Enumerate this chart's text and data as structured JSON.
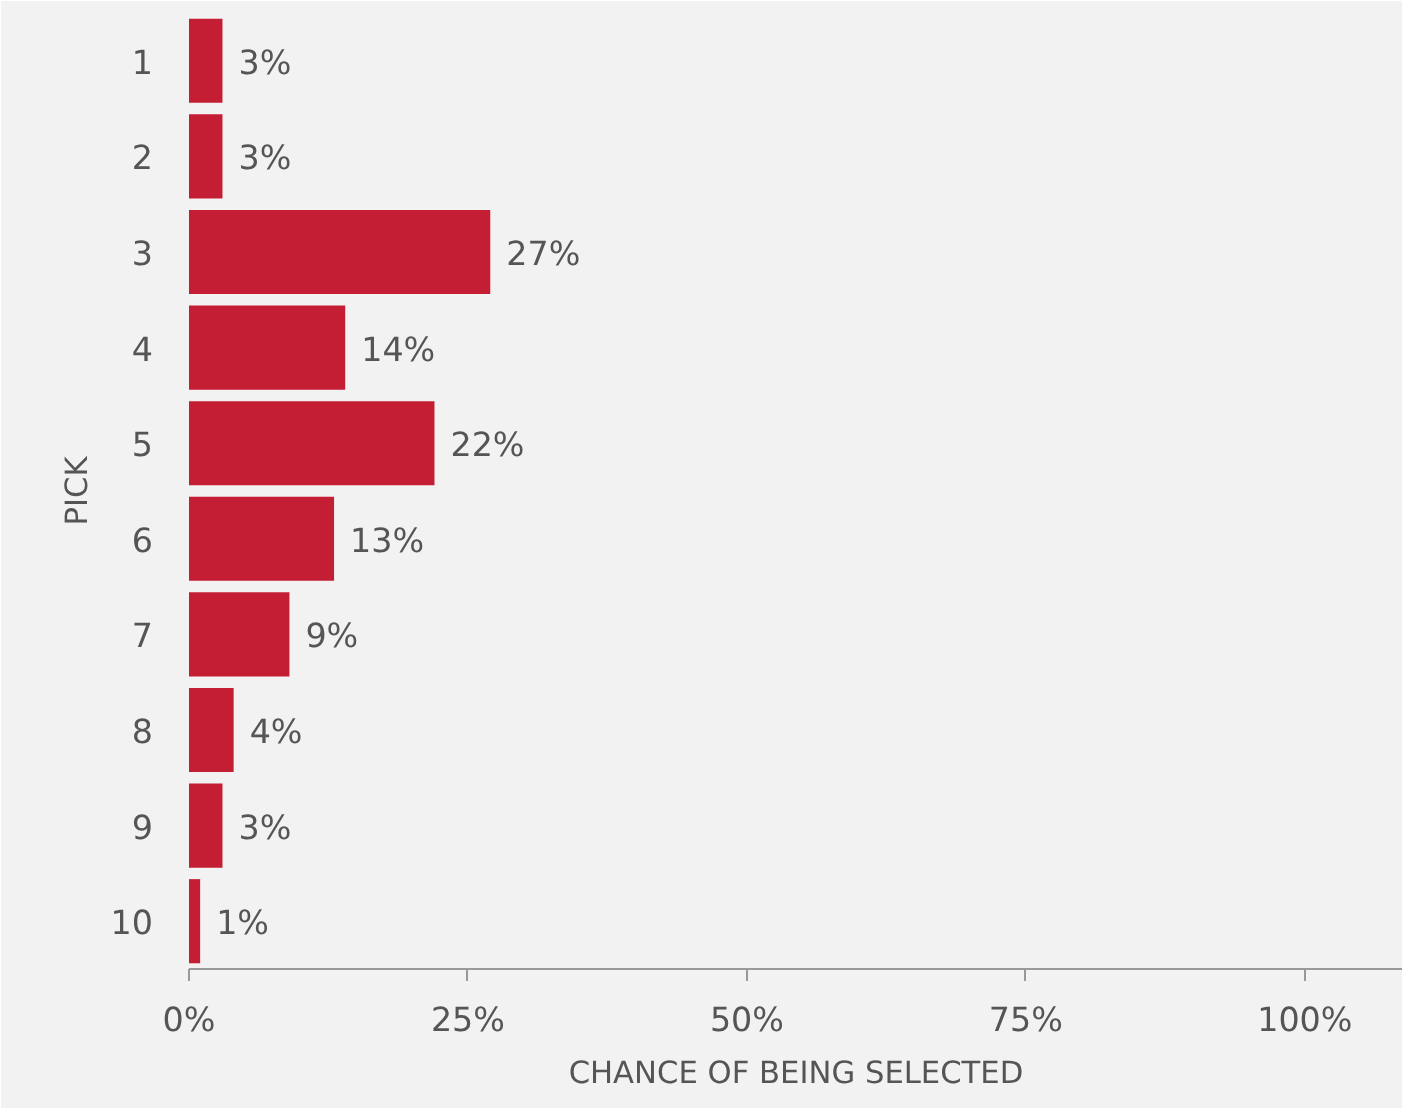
{
  "chart_data": {
    "type": "bar",
    "orientation": "horizontal",
    "xlabel": "CHANCE OF BEING SELECTED",
    "ylabel": "PICK",
    "categories": [
      "1",
      "2",
      "3",
      "4",
      "5",
      "6",
      "7",
      "8",
      "9",
      "10"
    ],
    "values": [
      3,
      3,
      27,
      14,
      22,
      13,
      9,
      4,
      3,
      1
    ],
    "color": "#c41e34",
    "value_labels": [
      "3%",
      "3%",
      "27%",
      "14%",
      "22%",
      "13%",
      "9%",
      "4%",
      "3%",
      "1%"
    ],
    "xlim": [
      0,
      108.8
    ],
    "xticks": [
      {
        "value": 0,
        "label": "0%"
      },
      {
        "value": 25,
        "label": "25%"
      },
      {
        "value": 50,
        "label": "50%"
      },
      {
        "value": 75,
        "label": "75%"
      },
      {
        "value": 100,
        "label": "100%"
      }
    ],
    "grid": false
  }
}
